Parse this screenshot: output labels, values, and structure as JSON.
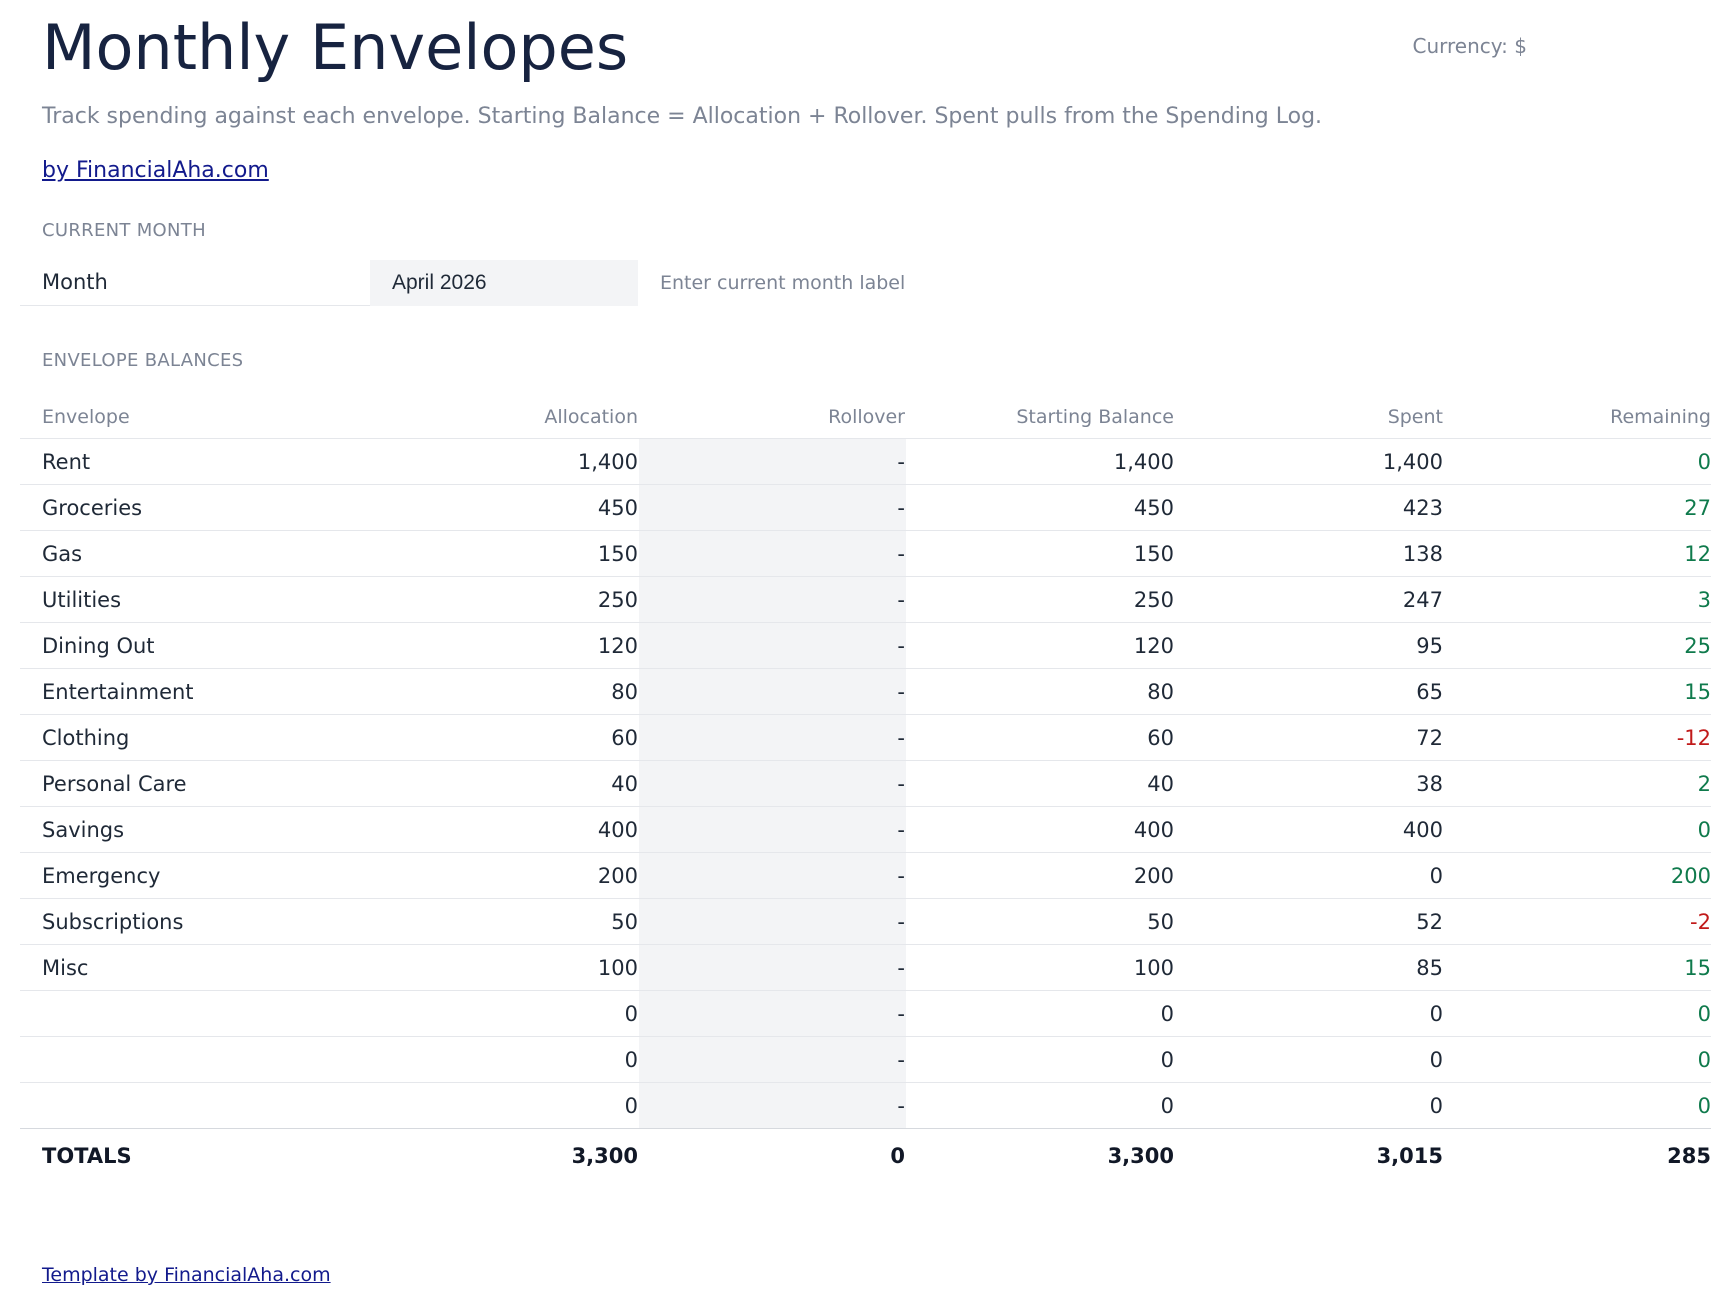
{
  "header": {
    "title": "Monthly Envelopes",
    "currency": "Currency: $",
    "subtitle": "Track spending against each envelope. Starting Balance = Allocation + Rollover. Spent pulls from the Spending Log.",
    "brand_link": "by FinancialAha.com"
  },
  "current_month": {
    "section_label": "CURRENT MONTH",
    "label": "Month",
    "value": "April 2026",
    "hint": "Enter current month label"
  },
  "envelopes": {
    "section_label": "ENVELOPE BALANCES",
    "columns": [
      "Envelope",
      "Allocation",
      "Rollover",
      "Starting Balance",
      "Spent",
      "Remaining"
    ],
    "rows": [
      {
        "name": "Rent",
        "allocation": "1,400",
        "rollover": "-",
        "starting": "1,400",
        "spent": "1,400",
        "remaining": "0",
        "status": "pos"
      },
      {
        "name": "Groceries",
        "allocation": "450",
        "rollover": "-",
        "starting": "450",
        "spent": "423",
        "remaining": "27",
        "status": "pos"
      },
      {
        "name": "Gas",
        "allocation": "150",
        "rollover": "-",
        "starting": "150",
        "spent": "138",
        "remaining": "12",
        "status": "pos"
      },
      {
        "name": "Utilities",
        "allocation": "250",
        "rollover": "-",
        "starting": "250",
        "spent": "247",
        "remaining": "3",
        "status": "pos"
      },
      {
        "name": "Dining Out",
        "allocation": "120",
        "rollover": "-",
        "starting": "120",
        "spent": "95",
        "remaining": "25",
        "status": "pos"
      },
      {
        "name": "Entertainment",
        "allocation": "80",
        "rollover": "-",
        "starting": "80",
        "spent": "65",
        "remaining": "15",
        "status": "pos"
      },
      {
        "name": "Clothing",
        "allocation": "60",
        "rollover": "-",
        "starting": "60",
        "spent": "72",
        "remaining": "-12",
        "status": "neg"
      },
      {
        "name": "Personal Care",
        "allocation": "40",
        "rollover": "-",
        "starting": "40",
        "spent": "38",
        "remaining": "2",
        "status": "pos"
      },
      {
        "name": "Savings",
        "allocation": "400",
        "rollover": "-",
        "starting": "400",
        "spent": "400",
        "remaining": "0",
        "status": "pos"
      },
      {
        "name": "Emergency",
        "allocation": "200",
        "rollover": "-",
        "starting": "200",
        "spent": "0",
        "remaining": "200",
        "status": "pos"
      },
      {
        "name": "Subscriptions",
        "allocation": "50",
        "rollover": "-",
        "starting": "50",
        "spent": "52",
        "remaining": "-2",
        "status": "neg"
      },
      {
        "name": "Misc",
        "allocation": "100",
        "rollover": "-",
        "starting": "100",
        "spent": "85",
        "remaining": "15",
        "status": "pos"
      },
      {
        "name": "",
        "allocation": "0",
        "rollover": "-",
        "starting": "0",
        "spent": "0",
        "remaining": "0",
        "status": "pos"
      },
      {
        "name": "",
        "allocation": "0",
        "rollover": "-",
        "starting": "0",
        "spent": "0",
        "remaining": "0",
        "status": "pos"
      },
      {
        "name": "",
        "allocation": "0",
        "rollover": "-",
        "starting": "0",
        "spent": "0",
        "remaining": "0",
        "status": "pos"
      }
    ],
    "totals": {
      "label": "TOTALS",
      "allocation": "3,300",
      "rollover": "0",
      "starting": "3,300",
      "spent": "3,015",
      "remaining": "285"
    }
  },
  "footer": {
    "link": "Template by FinancialAha.com"
  },
  "colors": {
    "positive": "#0f7a4c",
    "negative": "#c11a1a",
    "title": "#172340",
    "link": "#121a8c"
  }
}
